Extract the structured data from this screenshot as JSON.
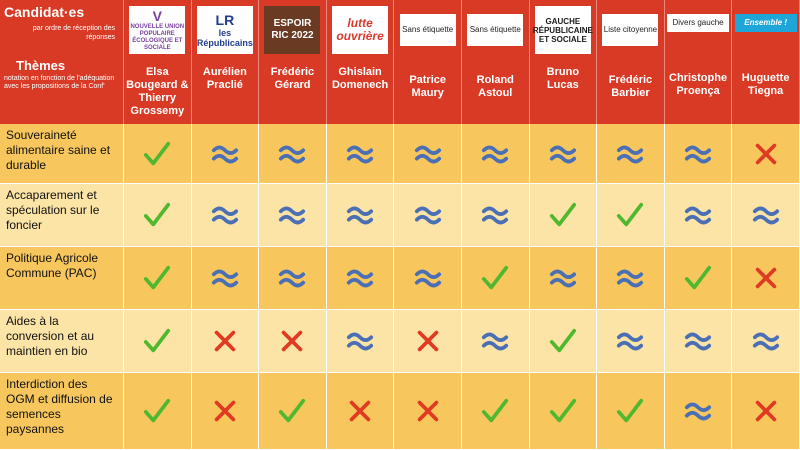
{
  "header": {
    "candidates_title": "Candidat·es",
    "order_note": "par ordre de réception des réponses",
    "themes_title": "Thèmes",
    "notation_note": "notation en fonction de l'adéquation avec les propositions de la Conf'"
  },
  "candidates": [
    {
      "name": "Elsa Bougeard & Thierry Grossemy",
      "logo_kind": "logo",
      "logo_text": "NOUVELLE UNION POPULAIRE ÉCOLOGIQUE ET SOCIALE",
      "logo_mark": "V",
      "logo_color": "#7a3fa0"
    },
    {
      "name": "Aurélien Praclié",
      "logo_kind": "logo",
      "logo_text": "les Républicains",
      "logo_mark": "LR",
      "logo_color": "#1f3e8c"
    },
    {
      "name": "Frédéric Gérard",
      "logo_kind": "logo",
      "logo_text": "ESPOIR RIC 2022",
      "logo_mark": "",
      "logo_color": "#6a3a22"
    },
    {
      "name": "Ghislain Domenech",
      "logo_kind": "logo",
      "logo_text": "lutte ouvrière",
      "logo_mark": "",
      "logo_color": "#d63a2e"
    },
    {
      "name": "Patrice Maury",
      "logo_kind": "small",
      "logo_text": "Sans étiquette",
      "logo_mark": "",
      "logo_color": "#ffffff"
    },
    {
      "name": "Roland Astoul",
      "logo_kind": "small",
      "logo_text": "Sans étiquette",
      "logo_mark": "",
      "logo_color": "#ffffff"
    },
    {
      "name": "Bruno Lucas",
      "logo_kind": "logo",
      "logo_text": "GAUCHE RÉPUBLICAINE ET SOCIALE",
      "logo_mark": "",
      "logo_color": "#1a1a1a"
    },
    {
      "name": "Frédéric Barbier",
      "logo_kind": "small",
      "logo_text": "Liste citoyenne",
      "logo_mark": "",
      "logo_color": "#ffffff"
    },
    {
      "name": "Christophe Proença",
      "logo_kind": "aff",
      "logo_text": "Divers gauche",
      "logo_mark": "",
      "logo_color": "#ffffff"
    },
    {
      "name": "Huguette Tiegna",
      "logo_kind": "aff",
      "logo_text": "Ensemble !",
      "logo_mark": "",
      "logo_color": "#1fa6d9"
    }
  ],
  "themes": [
    {
      "label": "Souveraineté alimentaire saine et durable",
      "marks": [
        "check",
        "approx",
        "approx",
        "approx",
        "approx",
        "approx",
        "approx",
        "approx",
        "approx",
        "cross"
      ]
    },
    {
      "label": "Accaparement et spéculation sur le foncier",
      "marks": [
        "check",
        "approx",
        "approx",
        "approx",
        "approx",
        "approx",
        "check",
        "check",
        "approx",
        "approx"
      ]
    },
    {
      "label": "Politique Agricole Commune (PAC)",
      "marks": [
        "check",
        "approx",
        "approx",
        "approx",
        "approx",
        "check",
        "approx",
        "approx",
        "check",
        "cross"
      ]
    },
    {
      "label": "Aides à la conversion et au maintien en bio",
      "marks": [
        "check",
        "cross",
        "cross",
        "approx",
        "cross",
        "approx",
        "check",
        "approx",
        "approx",
        "approx"
      ]
    },
    {
      "label": "Interdiction des OGM et diffusion de semences paysannes",
      "marks": [
        "check",
        "cross",
        "check",
        "cross",
        "cross",
        "check",
        "check",
        "check",
        "approx",
        "cross"
      ]
    }
  ],
  "colors": {
    "header_red": "#d93a26",
    "row_dark": "#f7c65d",
    "row_light": "#fce3a6",
    "check_green": "#4fb82f",
    "cross_red": "#e03a22",
    "approx_blue": "#4a6fb5"
  }
}
